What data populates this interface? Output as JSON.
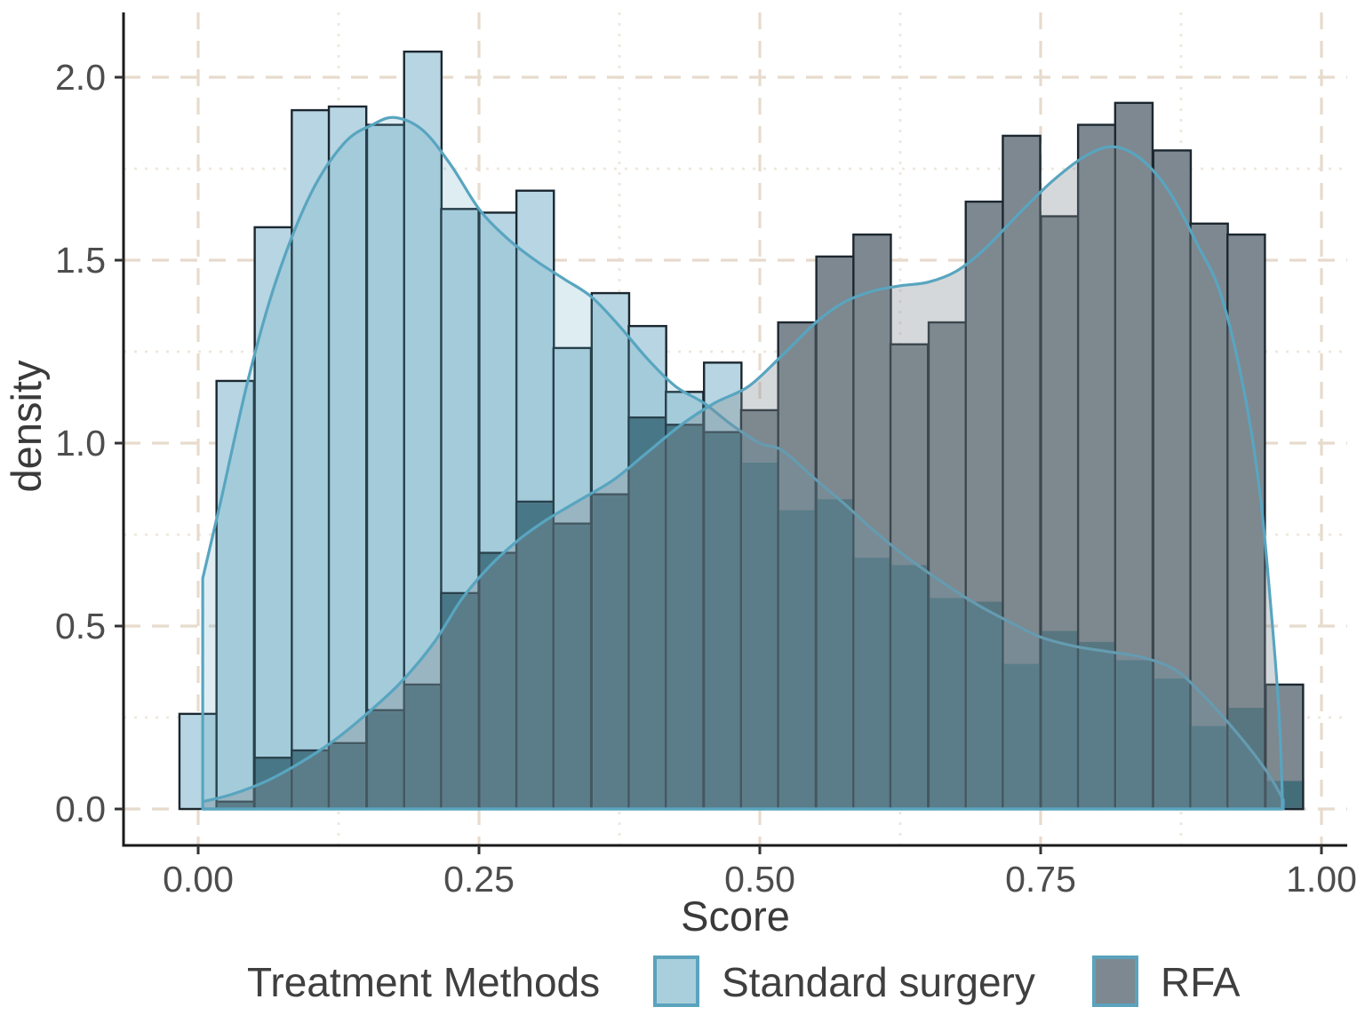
{
  "chart_data": {
    "type": "bar",
    "subtype": "overlaid-histograms-with-density-curves",
    "title": "",
    "xlabel": "Score",
    "ylabel": "density",
    "legend": {
      "title": "Treatment Methods",
      "position": "bottom",
      "items": [
        {
          "label": "Standard surgery",
          "swatch_fill": "#a9cfdc",
          "swatch_border": "#5ba3bd"
        },
        {
          "label": "RFA",
          "swatch_fill": "#7e8890",
          "swatch_border": "#5ba3bd"
        }
      ]
    },
    "x_ticks": {
      "labels": [
        "0.00",
        "0.25",
        "0.50",
        "0.75",
        "1.00"
      ],
      "values": [
        0,
        0.25,
        0.5,
        0.75,
        1.0
      ]
    },
    "y_ticks": {
      "labels": [
        "0.0",
        "0.5",
        "1.0",
        "1.5",
        "2.0"
      ],
      "values": [
        0,
        0.5,
        1.0,
        1.5,
        2.0
      ]
    },
    "x_minor": [
      0.125,
      0.375,
      0.625,
      0.875
    ],
    "y_minor": [
      0.25,
      0.75,
      1.25,
      1.75
    ],
    "xlim": [
      -0.066,
      1.023
    ],
    "ylim": [
      -0.1,
      2.18
    ],
    "grid": "major-dashed-minor-dotted",
    "bin_width": 0.03333,
    "bin_centers": [
      0.0,
      0.033,
      0.067,
      0.1,
      0.133,
      0.167,
      0.2,
      0.233,
      0.267,
      0.3,
      0.333,
      0.367,
      0.4,
      0.433,
      0.467,
      0.5,
      0.533,
      0.567,
      0.6,
      0.633,
      0.667,
      0.7,
      0.733,
      0.767,
      0.8,
      0.833,
      0.867,
      0.9,
      0.933,
      0.967
    ],
    "series": [
      {
        "name": "Standard surgery",
        "values": [
          0.26,
          1.17,
          1.59,
          1.91,
          1.92,
          1.87,
          2.07,
          1.64,
          1.63,
          1.69,
          1.26,
          1.41,
          1.32,
          1.14,
          1.22,
          0.95,
          0.82,
          0.85,
          0.69,
          0.67,
          0.58,
          0.57,
          0.4,
          0.49,
          0.46,
          0.41,
          0.36,
          0.23,
          0.28,
          0.08
        ]
      },
      {
        "name": "RFA",
        "values": [
          0.0,
          0.02,
          0.14,
          0.16,
          0.18,
          0.27,
          0.34,
          0.59,
          0.7,
          0.84,
          0.78,
          0.86,
          1.07,
          1.05,
          1.03,
          1.09,
          1.33,
          1.51,
          1.57,
          1.27,
          1.33,
          1.66,
          1.84,
          1.62,
          1.87,
          1.93,
          1.8,
          1.6,
          1.57,
          0.34
        ]
      }
    ],
    "density_curves": [
      {
        "name": "Standard surgery",
        "peak": [
          0.17,
          1.89
        ],
        "points": [
          [
            0.004,
            0.63
          ],
          [
            0.02,
            0.84
          ],
          [
            0.045,
            1.18
          ],
          [
            0.07,
            1.45
          ],
          [
            0.1,
            1.68
          ],
          [
            0.13,
            1.82
          ],
          [
            0.155,
            1.87
          ],
          [
            0.175,
            1.89
          ],
          [
            0.2,
            1.855
          ],
          [
            0.225,
            1.76
          ],
          [
            0.25,
            1.64
          ],
          [
            0.275,
            1.56
          ],
          [
            0.3,
            1.5
          ],
          [
            0.325,
            1.45
          ],
          [
            0.35,
            1.4
          ],
          [
            0.375,
            1.32
          ],
          [
            0.4,
            1.23
          ],
          [
            0.425,
            1.155
          ],
          [
            0.45,
            1.11
          ],
          [
            0.475,
            1.05
          ],
          [
            0.5,
            1.0
          ],
          [
            0.52,
            0.98
          ],
          [
            0.55,
            0.9
          ],
          [
            0.575,
            0.835
          ],
          [
            0.6,
            0.765
          ],
          [
            0.63,
            0.69
          ],
          [
            0.66,
            0.625
          ],
          [
            0.69,
            0.565
          ],
          [
            0.72,
            0.515
          ],
          [
            0.75,
            0.47
          ],
          [
            0.78,
            0.445
          ],
          [
            0.81,
            0.43
          ],
          [
            0.84,
            0.415
          ],
          [
            0.87,
            0.38
          ],
          [
            0.895,
            0.31
          ],
          [
            0.92,
            0.225
          ],
          [
            0.94,
            0.15
          ],
          [
            0.955,
            0.085
          ],
          [
            0.966,
            0.025
          ]
        ]
      },
      {
        "name": "RFA",
        "peak": [
          0.815,
          1.81
        ],
        "points": [
          [
            0.004,
            0.02
          ],
          [
            0.03,
            0.04
          ],
          [
            0.06,
            0.075
          ],
          [
            0.09,
            0.125
          ],
          [
            0.12,
            0.185
          ],
          [
            0.15,
            0.26
          ],
          [
            0.18,
            0.345
          ],
          [
            0.21,
            0.455
          ],
          [
            0.235,
            0.575
          ],
          [
            0.26,
            0.665
          ],
          [
            0.285,
            0.735
          ],
          [
            0.31,
            0.79
          ],
          [
            0.34,
            0.845
          ],
          [
            0.37,
            0.9
          ],
          [
            0.4,
            0.975
          ],
          [
            0.43,
            1.05
          ],
          [
            0.46,
            1.11
          ],
          [
            0.49,
            1.155
          ],
          [
            0.52,
            1.24
          ],
          [
            0.55,
            1.33
          ],
          [
            0.575,
            1.385
          ],
          [
            0.6,
            1.415
          ],
          [
            0.625,
            1.43
          ],
          [
            0.65,
            1.44
          ],
          [
            0.675,
            1.47
          ],
          [
            0.7,
            1.53
          ],
          [
            0.73,
            1.625
          ],
          [
            0.76,
            1.715
          ],
          [
            0.79,
            1.785
          ],
          [
            0.815,
            1.81
          ],
          [
            0.84,
            1.775
          ],
          [
            0.865,
            1.685
          ],
          [
            0.89,
            1.54
          ],
          [
            0.91,
            1.41
          ],
          [
            0.93,
            1.16
          ],
          [
            0.945,
            0.87
          ],
          [
            0.955,
            0.55
          ],
          [
            0.962,
            0.27
          ],
          [
            0.965,
            0.05
          ]
        ]
      }
    ],
    "colors": {
      "bar_blue": "#b7d5e2",
      "bar_gray": "#7e8890",
      "bar_overlap": "#446d7a",
      "bar_stroke": "#1b2730",
      "curve_stroke": "#58a5c0",
      "kde_blue_fill": "#5ba3bd",
      "kde_blue_alpha": 0.2,
      "kde_gray_fill": "#7e8890",
      "kde_gray_alpha": 0.33,
      "grid_major": "#e7dbcd",
      "grid_minor": "#efe7dc",
      "axis_line": "#1a1a1a",
      "tick_text": "#4d4d4d",
      "axis_title_text": "#3a3a3a",
      "legend_text": "#3f3f3f",
      "background": "#ffffff"
    }
  }
}
